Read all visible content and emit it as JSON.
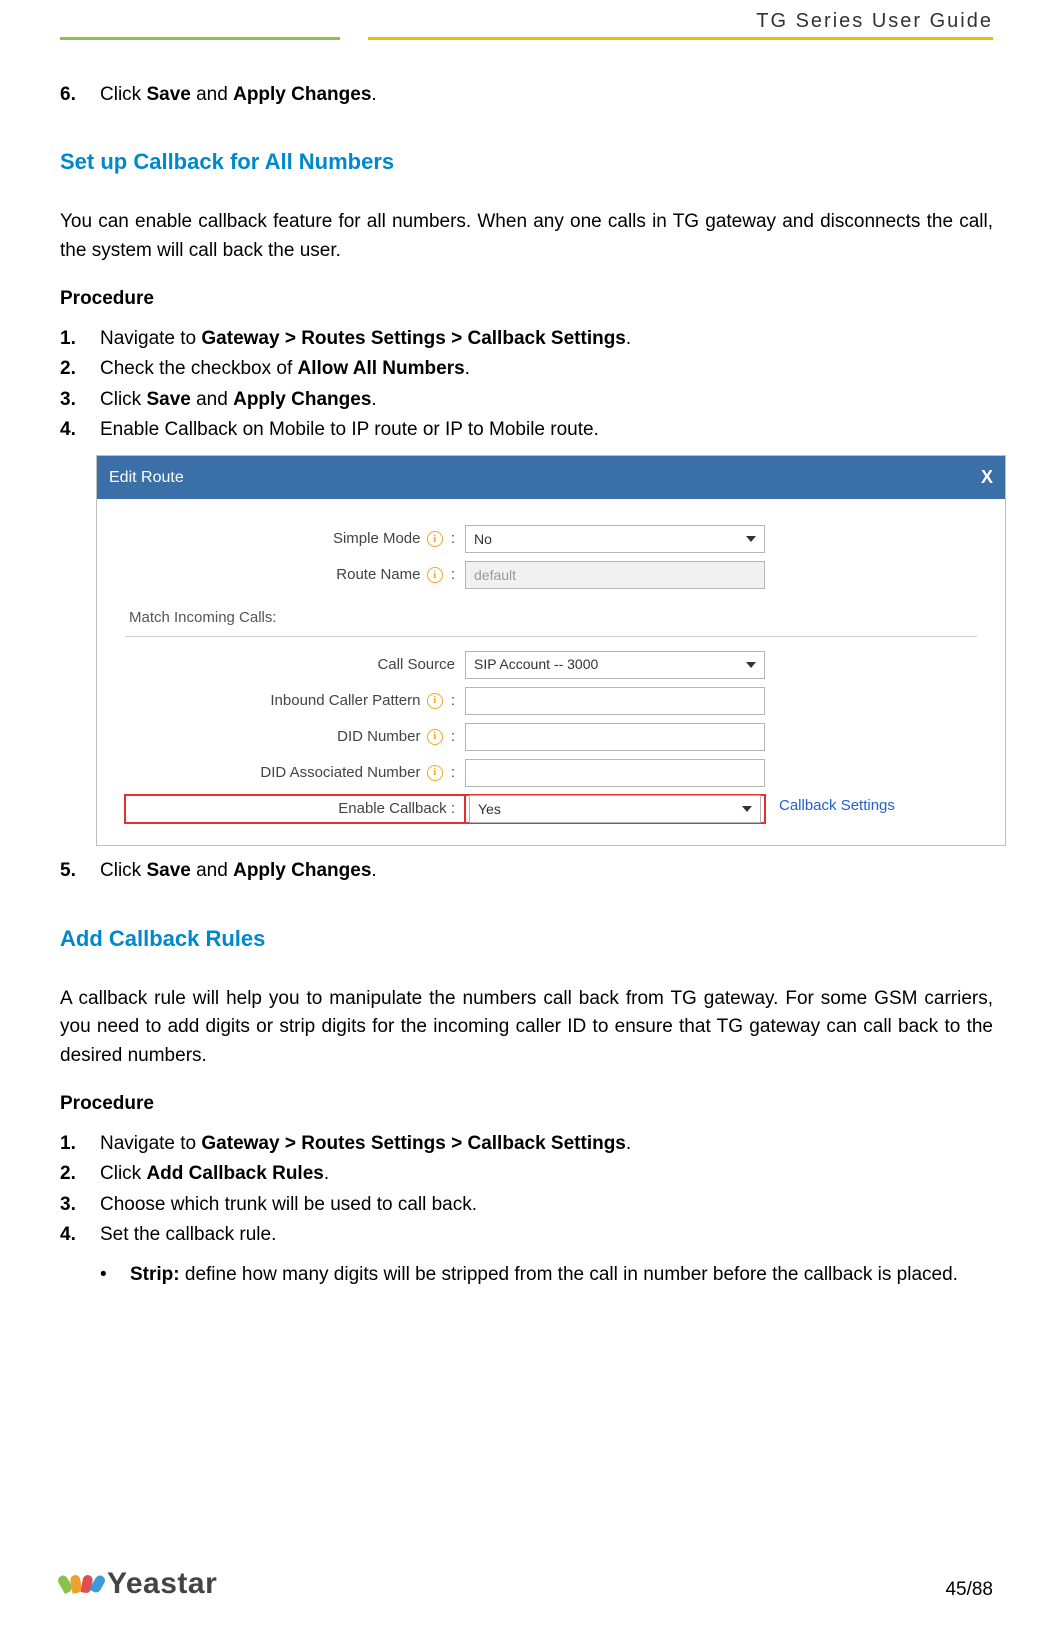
{
  "header": {
    "doc_title": "TG  Series  User  Guide"
  },
  "colors": {
    "rule_green": "#8bc34a",
    "rule_yellow": "#f0c000",
    "heading_blue": "#0088cc",
    "dialog_header": "#3a6fa8",
    "highlight_red": "#e03030",
    "link_blue": "#2460c9",
    "info_orange": "#f5a623"
  },
  "step6": {
    "num": "6.",
    "pre": "Click ",
    "b1": "Save",
    "mid": " and ",
    "b2": "Apply Changes",
    "post": "."
  },
  "section1": {
    "title": "Set up Callback for All Numbers",
    "intro": "You can enable callback feature for all numbers. When any one calls in TG gateway and disconnects the call, the system will call back the user.",
    "procedure_label": "Procedure",
    "steps": [
      {
        "num": "1.",
        "pre": "Navigate to ",
        "b1": "Gateway > Routes Settings > Callback Settings",
        "post": "."
      },
      {
        "num": "2.",
        "pre": "Check the checkbox of ",
        "b1": "Allow All Numbers",
        "post": "."
      },
      {
        "num": "3.",
        "pre": "Click ",
        "b1": "Save",
        "mid": " and ",
        "b2": "Apply Changes",
        "post": "."
      },
      {
        "num": "4.",
        "plain": "Enable Callback on Mobile to IP route or IP to Mobile route."
      }
    ],
    "step5": {
      "num": "5.",
      "pre": "Click ",
      "b1": "Save",
      "mid": " and ",
      "b2": "Apply Changes",
      "post": "."
    }
  },
  "dialog": {
    "title": "Edit Route",
    "close": "X",
    "rows": {
      "simple_mode": {
        "label": "Simple Mode",
        "value": "No",
        "has_info": true,
        "type": "select"
      },
      "route_name": {
        "label": "Route Name",
        "value": "default",
        "has_info": true,
        "type": "text_disabled"
      }
    },
    "match_label": "Match Incoming Calls:",
    "rows2": {
      "call_source": {
        "label": "Call Source",
        "value": "SIP Account -- 3000",
        "has_info": false,
        "type": "select"
      },
      "inbound_pattern": {
        "label": "Inbound Caller Pattern",
        "value": "",
        "has_info": true,
        "type": "text"
      },
      "did_number": {
        "label": "DID Number",
        "value": "",
        "has_info": true,
        "type": "text"
      },
      "did_assoc": {
        "label": "DID Associated Number",
        "value": "",
        "has_info": true,
        "type": "text"
      },
      "enable_callback": {
        "label": "Enable Callback :",
        "value": "Yes",
        "has_info": false,
        "type": "select",
        "link": "Callback Settings"
      }
    }
  },
  "section2": {
    "title": "Add Callback Rules",
    "intro": "A callback rule will help you to manipulate the numbers call back from TG gateway. For some GSM carriers, you need to add digits or strip digits for the incoming caller ID to ensure that TG gateway can call back to the desired numbers.",
    "procedure_label": "Procedure",
    "steps": [
      {
        "num": "1.",
        "pre": "Navigate to ",
        "b1": "Gateway > Routes Settings > Callback Settings",
        "post": "."
      },
      {
        "num": "2.",
        "pre": "Click ",
        "b1": "Add Callback Rules",
        "post": "."
      },
      {
        "num": "3.",
        "plain": "Choose which trunk will be used to call back."
      },
      {
        "num": "4.",
        "plain": "Set the callback rule."
      }
    ],
    "bullets": [
      {
        "b1": "Strip:",
        "rest": " define how many digits will be stripped from the call in number before the callback is placed."
      }
    ]
  },
  "footer": {
    "page": "45/88",
    "logo_text": "Yeastar",
    "petals": [
      "#8bc34a",
      "#f0a030",
      "#e05050",
      "#3a9bd8"
    ]
  }
}
